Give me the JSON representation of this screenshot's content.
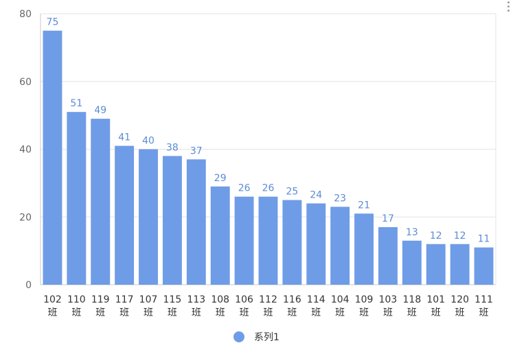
{
  "menu": {
    "icon": "more-vertical-icon"
  },
  "chart_data": {
    "type": "bar",
    "title": "",
    "xlabel": "",
    "ylabel": "",
    "ylim": [
      0,
      80
    ],
    "yticks": [
      0,
      20,
      40,
      60,
      80
    ],
    "grid": true,
    "legend_position": "bottom-center",
    "categories": [
      [
        "102",
        "班"
      ],
      [
        "110",
        "班"
      ],
      [
        "119",
        "班"
      ],
      [
        "117",
        "班"
      ],
      [
        "107",
        "班"
      ],
      [
        "115",
        "班"
      ],
      [
        "113",
        "班"
      ],
      [
        "108",
        "班"
      ],
      [
        "106",
        "班"
      ],
      [
        "112",
        "班"
      ],
      [
        "116",
        "班"
      ],
      [
        "114",
        "班"
      ],
      [
        "104",
        "班"
      ],
      [
        "109",
        "班"
      ],
      [
        "103",
        "班"
      ],
      [
        "118",
        "班"
      ],
      [
        "101",
        "班"
      ],
      [
        "120",
        "班"
      ],
      [
        "111",
        "班"
      ]
    ],
    "series": [
      {
        "name": "系列1",
        "color": "#6f9ce6",
        "values": [
          75,
          51,
          49,
          41,
          40,
          38,
          37,
          29,
          26,
          26,
          25,
          24,
          23,
          21,
          17,
          13,
          12,
          12,
          11
        ]
      }
    ],
    "colors": {
      "bar": "#6f9ce6",
      "data_label": "#5b8bd6",
      "grid": "#e3e3e3",
      "axis": "#c8c8c8",
      "tick_text": "#666666",
      "category_text": "#333333",
      "legend_text": "#333333"
    }
  }
}
